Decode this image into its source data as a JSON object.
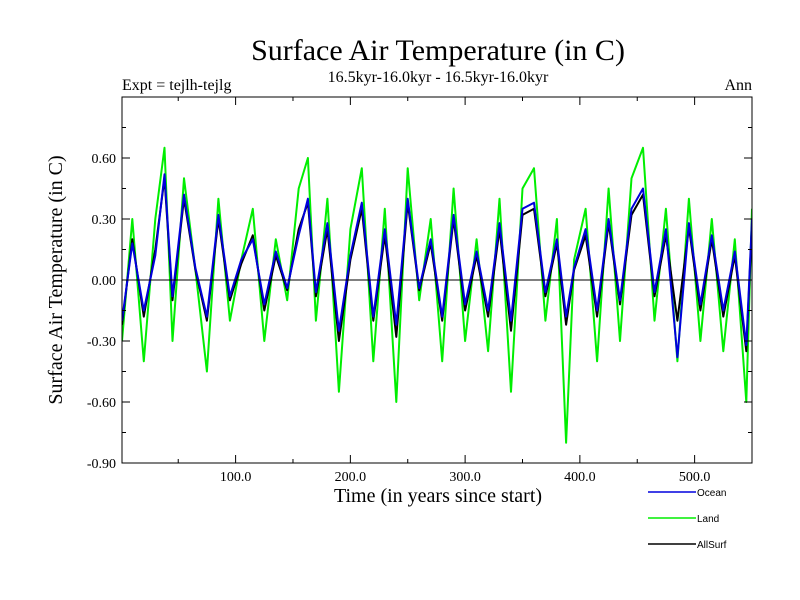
{
  "chart_data": {
    "type": "line",
    "title": "Surface Air Temperature (in C)",
    "subtitle": "16.5kyr-16.0kyr - 16.5kyr-16.0kyr",
    "left_label": "Expt = tejlh-tejlg",
    "right_label": "Ann",
    "xlabel": "Time (in years since start)",
    "ylabel": "Surface Air Temperature (in C)",
    "xlim": [
      1,
      550
    ],
    "ylim": [
      -0.9,
      0.9
    ],
    "xticks": [
      100,
      200,
      300,
      400,
      500
    ],
    "xtick_labels": [
      "100.0",
      "200.0",
      "300.0",
      "400.0",
      "500.0"
    ],
    "yticks": [
      -0.9,
      -0.6,
      -0.3,
      0.0,
      0.3,
      0.6
    ],
    "ytick_labels": [
      "-0.90",
      "-0.60",
      "-0.30",
      "0.00",
      "0.30",
      "0.60"
    ],
    "zero_line": true,
    "grid": false,
    "legend_position": "bottom-right, outside plot",
    "series": [
      {
        "name": "Land",
        "color": "#00ee00",
        "x": [
          1,
          10,
          20,
          30,
          38,
          45,
          55,
          65,
          75,
          85,
          95,
          105,
          115,
          125,
          135,
          145,
          155,
          163,
          170,
          180,
          190,
          200,
          210,
          220,
          230,
          240,
          250,
          260,
          270,
          280,
          290,
          300,
          310,
          320,
          330,
          340,
          350,
          360,
          370,
          380,
          388,
          395,
          405,
          415,
          425,
          435,
          445,
          455,
          465,
          475,
          485,
          495,
          505,
          515,
          525,
          535,
          545,
          550
        ],
        "values": [
          -0.3,
          0.3,
          -0.4,
          0.3,
          0.65,
          -0.3,
          0.5,
          0.05,
          -0.45,
          0.4,
          -0.2,
          0.1,
          0.35,
          -0.3,
          0.2,
          -0.1,
          0.45,
          0.6,
          -0.2,
          0.4,
          -0.55,
          0.25,
          0.55,
          -0.4,
          0.35,
          -0.6,
          0.55,
          -0.1,
          0.3,
          -0.4,
          0.45,
          -0.3,
          0.2,
          -0.35,
          0.4,
          -0.55,
          0.45,
          0.55,
          -0.2,
          0.3,
          -0.8,
          0.1,
          0.35,
          -0.4,
          0.45,
          -0.3,
          0.5,
          0.65,
          -0.2,
          0.35,
          -0.4,
          0.4,
          -0.3,
          0.3,
          -0.35,
          0.2,
          -0.6,
          0.35
        ]
      },
      {
        "name": "AllSurf",
        "color": "#000000",
        "x": [
          1,
          10,
          20,
          30,
          38,
          45,
          55,
          65,
          75,
          85,
          95,
          105,
          115,
          125,
          135,
          145,
          155,
          163,
          170,
          180,
          190,
          200,
          210,
          220,
          230,
          240,
          250,
          260,
          270,
          280,
          290,
          300,
          310,
          320,
          330,
          340,
          350,
          360,
          370,
          380,
          388,
          395,
          405,
          415,
          425,
          435,
          445,
          455,
          465,
          475,
          485,
          495,
          505,
          515,
          525,
          535,
          545,
          550
        ],
        "values": [
          -0.22,
          0.2,
          -0.18,
          0.15,
          0.5,
          -0.1,
          0.4,
          0.05,
          -0.2,
          0.3,
          -0.1,
          0.08,
          0.22,
          -0.15,
          0.12,
          -0.05,
          0.25,
          0.38,
          -0.08,
          0.25,
          -0.3,
          0.1,
          0.35,
          -0.2,
          0.22,
          -0.28,
          0.38,
          -0.05,
          0.18,
          -0.2,
          0.3,
          -0.15,
          0.12,
          -0.18,
          0.25,
          -0.25,
          0.32,
          0.35,
          -0.08,
          0.18,
          -0.22,
          0.05,
          0.22,
          -0.18,
          0.28,
          -0.12,
          0.32,
          0.42,
          -0.08,
          0.22,
          -0.2,
          0.26,
          -0.15,
          0.2,
          -0.18,
          0.12,
          -0.35,
          0.28
        ]
      },
      {
        "name": "Ocean",
        "color": "#0000dd",
        "x": [
          1,
          10,
          20,
          30,
          38,
          45,
          55,
          65,
          75,
          85,
          95,
          105,
          115,
          125,
          135,
          145,
          155,
          163,
          170,
          180,
          190,
          200,
          210,
          220,
          230,
          240,
          250,
          260,
          270,
          280,
          290,
          300,
          310,
          320,
          330,
          340,
          350,
          360,
          370,
          380,
          388,
          395,
          405,
          415,
          425,
          435,
          445,
          455,
          465,
          475,
          485,
          495,
          505,
          515,
          525,
          535,
          545,
          550
        ],
        "values": [
          -0.2,
          0.18,
          -0.15,
          0.12,
          0.52,
          -0.08,
          0.42,
          0.06,
          -0.18,
          0.32,
          -0.08,
          0.1,
          0.2,
          -0.12,
          0.14,
          -0.04,
          0.22,
          0.4,
          -0.06,
          0.28,
          -0.25,
          0.12,
          0.38,
          -0.18,
          0.25,
          -0.22,
          0.4,
          -0.04,
          0.2,
          -0.18,
          0.32,
          -0.12,
          0.14,
          -0.15,
          0.28,
          -0.2,
          0.35,
          0.38,
          -0.06,
          0.2,
          -0.18,
          0.06,
          0.25,
          -0.15,
          0.3,
          -0.1,
          0.35,
          0.45,
          -0.06,
          0.25,
          -0.38,
          0.28,
          -0.12,
          0.22,
          -0.15,
          0.14,
          -0.32,
          0.3
        ]
      }
    ],
    "legend_order": [
      "Ocean",
      "Land",
      "AllSurf"
    ]
  }
}
